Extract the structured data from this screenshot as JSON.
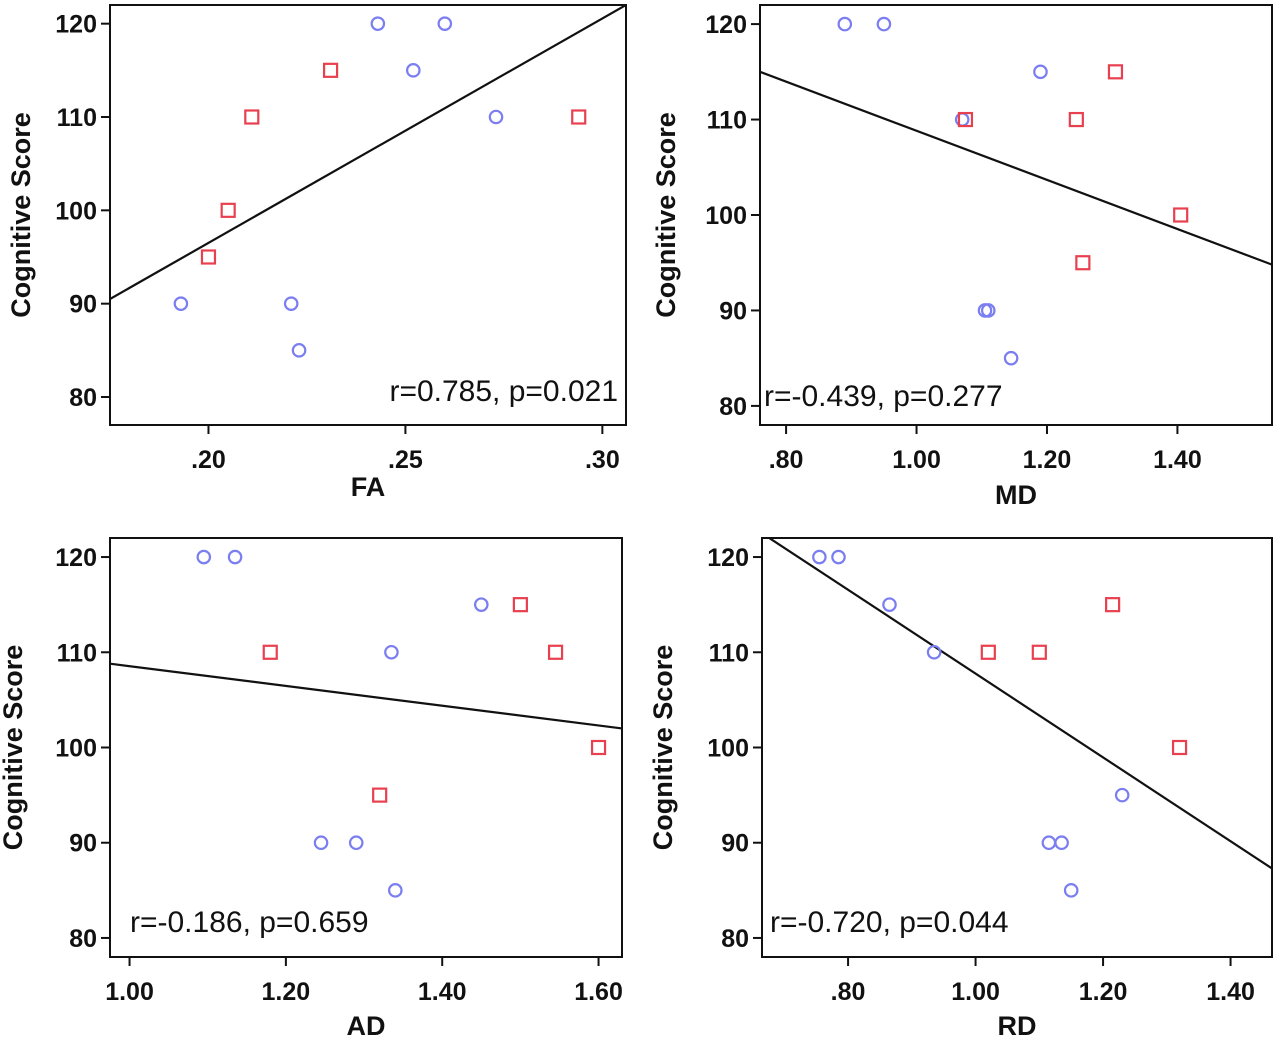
{
  "colors": {
    "circle": "#7a7ef0",
    "square": "#e8404f"
  },
  "chart_data": [
    {
      "type": "scatter",
      "title": "",
      "xlabel": "FA",
      "ylabel": "Cognitive Score",
      "xlim": [
        0.175,
        0.306
      ],
      "ylim": [
        77,
        122
      ],
      "xticks": [
        0.2,
        0.25,
        0.3
      ],
      "xtick_labels": [
        ".20",
        ".25",
        ".30"
      ],
      "yticks": [
        80,
        90,
        100,
        110,
        120
      ],
      "ytick_labels": [
        "80",
        "90",
        "100",
        "110",
        "120"
      ],
      "annotation": "r=0.785, p=0.021",
      "fit_line": [
        [
          0.175,
          90.5
        ],
        [
          0.306,
          122
        ]
      ],
      "series": [
        {
          "marker": "circle",
          "points": [
            [
              0.193,
              90
            ],
            [
              0.221,
              90
            ],
            [
              0.223,
              85
            ],
            [
              0.243,
              120
            ],
            [
              0.252,
              115
            ],
            [
              0.26,
              120
            ],
            [
              0.273,
              110
            ]
          ]
        },
        {
          "marker": "square",
          "points": [
            [
              0.2,
              95
            ],
            [
              0.205,
              100
            ],
            [
              0.211,
              110
            ],
            [
              0.231,
              115
            ],
            [
              0.294,
              110
            ]
          ]
        }
      ]
    },
    {
      "type": "scatter",
      "title": "",
      "xlabel": "MD",
      "ylabel": "Cognitive Score",
      "xlim": [
        0.76,
        1.545
      ],
      "ylim": [
        78,
        122
      ],
      "xticks": [
        0.8,
        1.0,
        1.2,
        1.4
      ],
      "xtick_labels": [
        ".80",
        "1.00",
        "1.20",
        "1.40"
      ],
      "yticks": [
        80,
        90,
        100,
        110,
        120
      ],
      "ytick_labels": [
        "80",
        "90",
        "100",
        "110",
        "120"
      ],
      "annotation": "r=-0.439, p=0.277",
      "fit_line": [
        [
          0.76,
          115
        ],
        [
          1.545,
          94.8
        ]
      ],
      "series": [
        {
          "marker": "circle",
          "points": [
            [
              0.89,
              120
            ],
            [
              0.95,
              120
            ],
            [
              1.07,
              110
            ],
            [
              1.105,
              90
            ],
            [
              1.11,
              90
            ],
            [
              1.145,
              85
            ],
            [
              1.19,
              115
            ]
          ]
        },
        {
          "marker": "square",
          "points": [
            [
              1.075,
              110
            ],
            [
              1.245,
              110
            ],
            [
              1.255,
              95
            ],
            [
              1.305,
              115
            ],
            [
              1.405,
              100
            ]
          ]
        }
      ]
    },
    {
      "type": "scatter",
      "title": "",
      "xlabel": "AD",
      "ylabel": "Cognitive Score",
      "xlim": [
        0.975,
        1.63
      ],
      "ylim": [
        78,
        122
      ],
      "xticks": [
        1.0,
        1.2,
        1.4,
        1.6
      ],
      "xtick_labels": [
        "1.00",
        "1.20",
        "1.40",
        "1.60"
      ],
      "yticks": [
        80,
        90,
        100,
        110,
        120
      ],
      "ytick_labels": [
        "80",
        "90",
        "100",
        "110",
        "120"
      ],
      "annotation": "r=-0.186, p=0.659",
      "fit_line": [
        [
          0.975,
          108.8
        ],
        [
          1.63,
          102
        ]
      ],
      "series": [
        {
          "marker": "circle",
          "points": [
            [
              1.095,
              120
            ],
            [
              1.135,
              120
            ],
            [
              1.245,
              90
            ],
            [
              1.29,
              90
            ],
            [
              1.335,
              110
            ],
            [
              1.34,
              85
            ],
            [
              1.45,
              115
            ]
          ]
        },
        {
          "marker": "square",
          "points": [
            [
              1.18,
              110
            ],
            [
              1.32,
              95
            ],
            [
              1.5,
              115
            ],
            [
              1.545,
              110
            ],
            [
              1.6,
              100
            ]
          ]
        }
      ]
    },
    {
      "type": "scatter",
      "title": "",
      "xlabel": "RD",
      "ylabel": "Cognitive Score",
      "xlim": [
        0.665,
        1.465
      ],
      "ylim": [
        78,
        122
      ],
      "xticks": [
        0.8,
        1.0,
        1.2,
        1.4
      ],
      "xtick_labels": [
        ".80",
        "1.00",
        "1.20",
        "1.40"
      ],
      "yticks": [
        80,
        90,
        100,
        110,
        120
      ],
      "ytick_labels": [
        "80",
        "90",
        "100",
        "110",
        "120"
      ],
      "annotation": "r=-0.720, p=0.044",
      "fit_line": [
        [
          0.665,
          122.5
        ],
        [
          1.465,
          87.3
        ]
      ],
      "series": [
        {
          "marker": "circle",
          "points": [
            [
              0.755,
              120
            ],
            [
              0.785,
              120
            ],
            [
              0.865,
              115
            ],
            [
              0.935,
              110
            ],
            [
              1.115,
              90
            ],
            [
              1.135,
              90
            ],
            [
              1.15,
              85
            ],
            [
              1.23,
              95
            ]
          ]
        },
        {
          "marker": "square",
          "points": [
            [
              1.02,
              110
            ],
            [
              1.1,
              110
            ],
            [
              1.215,
              115
            ],
            [
              1.32,
              100
            ]
          ]
        }
      ]
    }
  ]
}
